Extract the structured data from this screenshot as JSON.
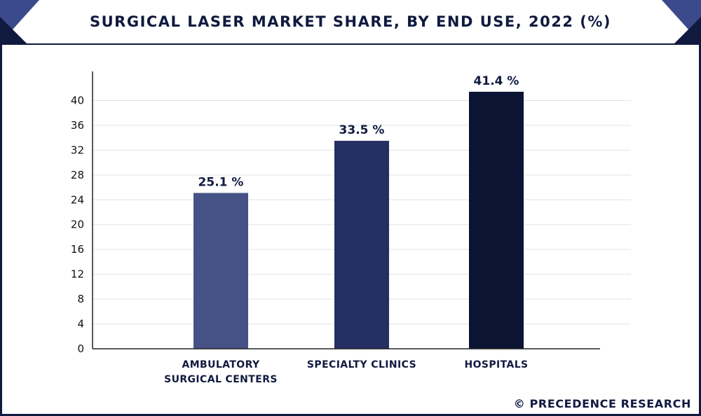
{
  "chart_data": {
    "type": "bar",
    "title": "SURGICAL LASER MARKET SHARE, BY END USE, 2022 (%)",
    "xlabel": "",
    "ylabel": "",
    "categories": [
      [
        "AMBULATORY",
        "SURGICAL CENTERS"
      ],
      [
        "SPECIALTY CLINICS"
      ],
      [
        "HOSPITALS"
      ]
    ],
    "values": [
      25.1,
      33.5,
      41.4
    ],
    "data_labels": [
      "25.1 %",
      "33.5 %",
      "41.4 %"
    ],
    "bar_colors": [
      "#465286",
      "#252f63",
      "#0b1433"
    ],
    "ylim": [
      0,
      44
    ],
    "yticks": [
      0,
      4,
      8,
      12,
      16,
      20,
      24,
      28,
      32,
      36,
      40
    ],
    "grid": true
  },
  "source": "© PRECEDENCE RESEARCH",
  "colors": {
    "brand": "#101a3f",
    "accent": "#3a4a8a"
  }
}
